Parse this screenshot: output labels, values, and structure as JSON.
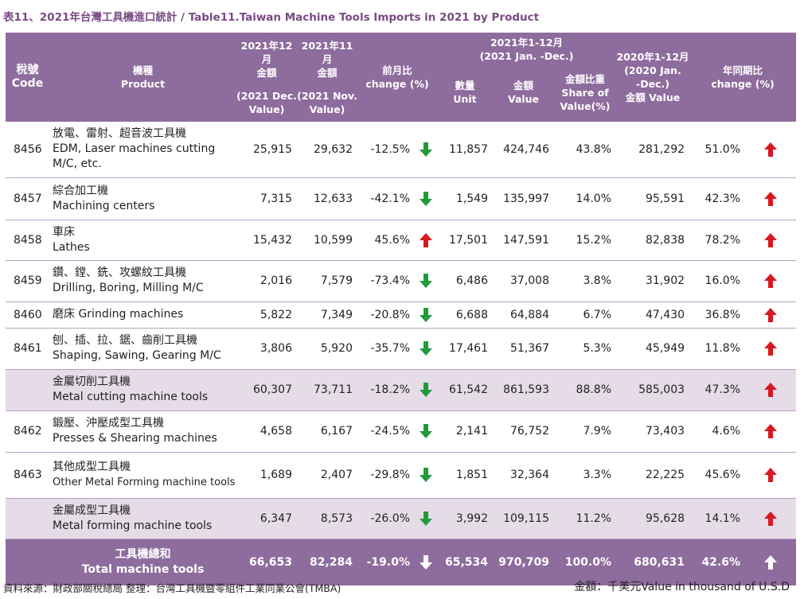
{
  "title": "表11、2021年台灣工具機進口統計 / Table11.Taiwan Machine Tools Imports in 2021 by Product",
  "header": {
    "code_zh": "稅號",
    "code_en": "Code",
    "product_zh": "機種",
    "product_en": "Product",
    "dec_zh": "2021年12月",
    "dec_zh2": "金額",
    "dec_en": "(2021 Dec.",
    "dec_en2": "Value)",
    "nov_zh": "2021年11月",
    "nov_zh2": "金額",
    "nov_en": "(2021 Nov.",
    "nov_en2": "Value)",
    "mom_zh": "前月比",
    "mom_en": "change (%)",
    "group_zh": "2021年1-12月",
    "group_en": "(2021 Jan. -Dec.)",
    "qty_zh": "數量",
    "qty_en": "Unit",
    "val_zh": "金額",
    "val_en": "Value",
    "share_zh": "金額比重",
    "share_en": "Share of",
    "share_en2": "Value(%)",
    "prev_zh": "2020年1-12月",
    "prev_en": "(2020 Jan.",
    "prev_en2": "-Dec.)",
    "prev_en3": "金額 Value",
    "yoy_zh": "年同期比",
    "yoy_en": "change (%)"
  },
  "rows": [
    {
      "code": "8456",
      "zh": "放電、雷射、超音波工具機",
      "en": "EDM, Laser machines cutting",
      "en2": "M/C, etc.",
      "dec": "25,915",
      "nov": "29,632",
      "mom": "-12.5%",
      "qty": "11,857",
      "value": "424,746",
      "share": "43.8%",
      "prev": "281,292",
      "yoy": "51.0%"
    },
    {
      "code": "8457",
      "zh": "綜合加工機",
      "en": "Machining centers",
      "dec": "7,315",
      "nov": "12,633",
      "mom": "-42.1%",
      "qty": "1,549",
      "value": "135,997",
      "share": "14.0%",
      "prev": "95,591",
      "yoy": "42.3%"
    },
    {
      "code": "8458",
      "zh": "車床",
      "en": "Lathes",
      "dec": "15,432",
      "nov": "10,599",
      "mom": "45.6%",
      "qty": "17,501",
      "value": "147,591",
      "share": "15.2%",
      "prev": "82,838",
      "yoy": "78.2%"
    },
    {
      "code": "8459",
      "zh": "鑽、鏜、銑、攻螺紋工具機",
      "en": "Drilling, Boring, Milling M/C",
      "dec": "2,016",
      "nov": "7,579",
      "mom": "-73.4%",
      "qty": "6,486",
      "value": "37,008",
      "share": "3.8%",
      "prev": "31,902",
      "yoy": "16.0%"
    },
    {
      "code": "8460",
      "single": "磨床  Grinding machines",
      "dec": "5,822",
      "nov": "7,349",
      "mom": "-20.8%",
      "qty": "6,688",
      "value": "64,884",
      "share": "6.7%",
      "prev": "47,430",
      "yoy": "36.8%"
    },
    {
      "code": "8461",
      "zh": "刨、插、拉、鋸、齒削工具機",
      "en": "Shaping, Sawing, Gearing M/C",
      "dec": "3,806",
      "nov": "5,920",
      "mom": "-35.7%",
      "qty": "17,461",
      "value": "51,367",
      "share": "5.3%",
      "prev": "45,949",
      "yoy": "11.8%"
    },
    {
      "code": "",
      "zh": "金屬切削工具機",
      "en": "Metal cutting machine tools",
      "dec": "60,307",
      "nov": "73,711",
      "mom": "-18.2%",
      "qty": "61,542",
      "value": "861,593",
      "share": "88.8%",
      "prev": "585,003",
      "yoy": "47.3%"
    },
    {
      "code": "8462",
      "zh": "鍛壓、沖壓成型工具機",
      "en": "Presses & Shearing machines",
      "dec": "4,658",
      "nov": "6,167",
      "mom": "-24.5%",
      "qty": "2,141",
      "value": "76,752",
      "share": "7.9%",
      "prev": "73,403",
      "yoy": "4.6%"
    },
    {
      "code": "8463",
      "zh": "其他成型工具機",
      "en": "Other Metal Forming machine tools",
      "dec": "1,689",
      "nov": "2,407",
      "mom": "-29.8%",
      "qty": "1,851",
      "value": "32,364",
      "share": "3.3%",
      "prev": "22,225",
      "yoy": "45.6%"
    },
    {
      "code": "",
      "zh": "金屬成型工具機",
      "en": "Metal forming machine tools",
      "dec": "6,347",
      "nov": "8,573",
      "mom": "-26.0%",
      "qty": "3,992",
      "value": "109,115",
      "share": "11.2%",
      "prev": "95,628",
      "yoy": "14.1%"
    },
    {
      "code": "",
      "zh": "工具機總和",
      "en": "Total machine tools",
      "dec": "66,653",
      "nov": "82,284",
      "mom": "-19.0%",
      "qty": "65,534",
      "value": "970,709",
      "share": "100.0%",
      "prev": "680,631",
      "yoy": "42.6%"
    }
  ],
  "icons": {
    "up": "arrow-up-icon",
    "down": "arrow-down-icon"
  },
  "colors": {
    "header": "#8e6c9d",
    "subtotal": "#e5dce8",
    "up": "#d7191f",
    "down": "#229a3b",
    "title": "#7a4a84"
  },
  "footer": {
    "source": "資料來源：財政部關稅總局  整理：台灣工具機暨零組件工業同業公會(TMBA)",
    "unit": "金額：千美元Value in thousand of U.S.D"
  }
}
